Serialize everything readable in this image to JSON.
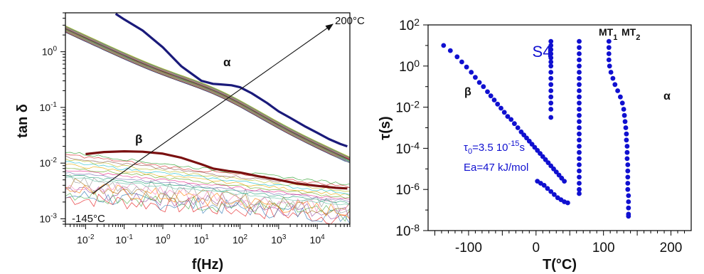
{
  "chart_data": [
    {
      "type": "line",
      "xscale": "log",
      "yscale": "log",
      "xlabel": "f(Hz)",
      "ylabel": "tan δ",
      "xlim": [
        0.003,
        70000
      ],
      "ylim": [
        0.0008,
        5
      ],
      "xticks": [
        {
          "value": 0.01,
          "base": "10",
          "exp": "-2"
        },
        {
          "value": 0.1,
          "base": "10",
          "exp": "-1"
        },
        {
          "value": 1,
          "base": "10",
          "exp": "0"
        },
        {
          "value": 10,
          "base": "10",
          "exp": "1"
        },
        {
          "value": 100,
          "base": "10",
          "exp": "2"
        },
        {
          "value": 1000,
          "base": "10",
          "exp": "3"
        },
        {
          "value": 10000,
          "base": "10",
          "exp": "4"
        }
      ],
      "yticks": [
        {
          "value": 0.001,
          "base": "10",
          "exp": "-3"
        },
        {
          "value": 0.01,
          "base": "10",
          "exp": "-2"
        },
        {
          "value": 0.1,
          "base": "10",
          "exp": "-1"
        },
        {
          "value": 1,
          "base": "10",
          "exp": "0"
        }
      ],
      "temperature_arrow": {
        "from_label": "-145°C",
        "to_label": "200°C"
      },
      "annotations": [
        "α",
        "β"
      ],
      "family_colors": [
        "#e41a1c",
        "#377eb8",
        "#4daf4a",
        "#984ea3",
        "#ff7f00",
        "#a6761d",
        "#f781bf",
        "#999999",
        "#66c2a5",
        "#1b9e77",
        "#7570b3",
        "#e7298a",
        "#66a61e",
        "#e6ab02",
        "#17becf",
        "#bcbd22",
        "#8c564b",
        "#d62728",
        "#2ca02c",
        "#1f77b4",
        "#000000",
        "#9467bd"
      ],
      "highlight_series": [
        {
          "role": "α curve",
          "color": "#1a1a7a",
          "x": [
            0.06,
            0.1,
            0.3,
            1,
            3,
            10,
            20,
            30,
            60,
            100,
            200,
            500,
            1000,
            2000,
            5000,
            10000,
            20000,
            40000,
            60000
          ],
          "y": [
            4.8,
            3.8,
            2.4,
            1.2,
            0.55,
            0.3,
            0.265,
            0.26,
            0.25,
            0.23,
            0.18,
            0.12,
            0.085,
            0.065,
            0.045,
            0.035,
            0.027,
            0.022,
            0.02
          ]
        },
        {
          "role": "β curve",
          "color": "#7a1010",
          "x": [
            0.01,
            0.03,
            0.1,
            0.3,
            1,
            3,
            10,
            20,
            50,
            100,
            300,
            1000,
            3000,
            10000,
            30000,
            60000
          ],
          "y": [
            0.0145,
            0.0158,
            0.0163,
            0.016,
            0.0148,
            0.0125,
            0.0095,
            0.008,
            0.0072,
            0.0068,
            0.0058,
            0.005,
            0.0043,
            0.0039,
            0.0036,
            0.0035
          ]
        }
      ]
    },
    {
      "type": "scatter",
      "xlabel": "T(°C)",
      "ylabel": "τ(s)",
      "title": "S4",
      "yscale": "log",
      "xlim": [
        -160,
        230
      ],
      "ylim": [
        1e-08,
        100
      ],
      "xticks": [
        -100,
        0,
        100,
        200
      ],
      "yticks": [
        {
          "value": 1e-08,
          "base": "10",
          "exp": "-8"
        },
        {
          "value": 1e-06,
          "base": "10",
          "exp": "-6"
        },
        {
          "value": 0.0001,
          "base": "10",
          "exp": "-4"
        },
        {
          "value": 0.01,
          "base": "10",
          "exp": "-2"
        },
        {
          "value": 1,
          "base": "10",
          "exp": "0"
        },
        {
          "value": 100,
          "base": "10",
          "exp": "2"
        }
      ],
      "annotations": {
        "beta": "β",
        "alpha": "α",
        "mt1": {
          "main": "MT",
          "sub": "1"
        },
        "mt2": {
          "main": "MT",
          "sub": "2"
        },
        "tau0": {
          "prefix": "τ",
          "sub": "0",
          "text": "=3.5 10",
          "exp": "-15",
          "unit": "s"
        },
        "ea": "Ea=47 kJ/mol"
      },
      "marker_color": "#1010d0",
      "series": [
        {
          "role": "β relaxation",
          "x": [
            -137,
            -127,
            -117,
            -110,
            -103,
            -96,
            -90,
            -84,
            -78,
            -72,
            -67,
            -62,
            -57,
            -52,
            -47,
            -42,
            -37,
            -32,
            -27,
            -22,
            -18,
            -14,
            -10,
            -6,
            -2,
            2,
            6,
            10,
            14,
            18,
            22,
            26,
            30,
            34,
            38,
            42
          ],
          "logy": [
            1.0,
            0.75,
            0.45,
            0.2,
            -0.05,
            -0.3,
            -0.55,
            -0.8,
            -1.0,
            -1.25,
            -1.45,
            -1.65,
            -1.85,
            -2.05,
            -2.25,
            -2.45,
            -2.6,
            -2.8,
            -3.0,
            -3.2,
            -3.35,
            -3.5,
            -3.65,
            -3.8,
            -3.95,
            -4.1,
            -4.25,
            -4.4,
            -4.55,
            -4.7,
            -4.85,
            -5.0,
            -5.15,
            -5.3,
            -5.45,
            -5.6
          ]
        },
        {
          "role": "β relaxation (high T)",
          "x": [
            2,
            7,
            12,
            17,
            22,
            27,
            32,
            37,
            42,
            47
          ],
          "logy": [
            -5.6,
            -5.7,
            -5.8,
            -5.95,
            -6.1,
            -6.25,
            -6.4,
            -6.5,
            -6.6,
            -6.65
          ]
        },
        {
          "role": "MT1",
          "x": [
            22,
            22,
            22,
            22,
            22,
            22,
            22,
            22,
            22,
            22,
            22,
            22,
            22,
            22,
            22
          ],
          "logy": [
            1.2,
            1.0,
            0.8,
            0.6,
            0.4,
            0.2,
            0.0,
            -0.3,
            -0.6,
            -0.9,
            -1.2,
            -1.5,
            -1.8,
            -2.1,
            -2.5
          ]
        },
        {
          "role": "MT2",
          "x": [
            64,
            64,
            64,
            64,
            64,
            64,
            64,
            64,
            64,
            64,
            64,
            64,
            64,
            64,
            64,
            64,
            64,
            64,
            64,
            64,
            64,
            64,
            64,
            64,
            64,
            64
          ],
          "logy": [
            1.2,
            0.9,
            0.6,
            0.3,
            0.0,
            -0.3,
            -0.6,
            -0.9,
            -1.2,
            -1.5,
            -1.8,
            -2.1,
            -2.4,
            -2.7,
            -3.0,
            -3.3,
            -3.6,
            -3.9,
            -4.2,
            -4.5,
            -4.8,
            -5.1,
            -5.4,
            -5.7,
            -6.0,
            -6.2
          ]
        },
        {
          "role": "α relaxation",
          "x": [
            108,
            108,
            108,
            108,
            109,
            111,
            114,
            117,
            121,
            125,
            128,
            130,
            131,
            132,
            133,
            134,
            134,
            135,
            135,
            135,
            136,
            136,
            136,
            136,
            136,
            137,
            137,
            137,
            137,
            137
          ],
          "logy": [
            1.2,
            0.9,
            0.6,
            0.3,
            0.0,
            -0.3,
            -0.6,
            -0.9,
            -1.2,
            -1.5,
            -1.8,
            -2.1,
            -2.4,
            -2.7,
            -3.0,
            -3.3,
            -3.6,
            -3.9,
            -4.2,
            -4.5,
            -4.8,
            -5.1,
            -5.4,
            -5.7,
            -6.0,
            -6.3,
            -6.6,
            -6.9,
            -7.2,
            -7.3
          ]
        }
      ]
    }
  ]
}
